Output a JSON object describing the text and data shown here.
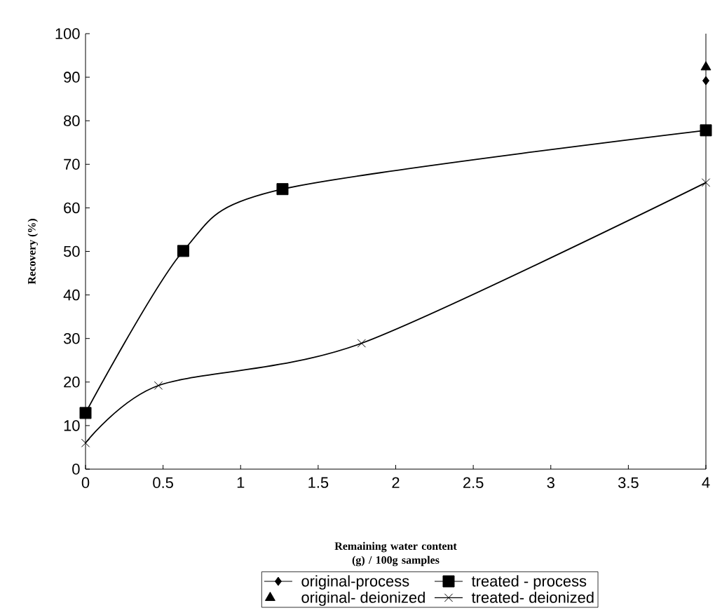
{
  "chart_data": {
    "type": "line",
    "xlabel": "Remaining water content (g) / 100g samples",
    "ylabel": "Recovery (%)",
    "xlim": [
      0,
      4
    ],
    "ylim": [
      0,
      100
    ],
    "xticks": [
      0,
      0.5,
      1,
      1.5,
      2,
      2.5,
      3,
      3.5,
      4
    ],
    "yticks": [
      0,
      10,
      20,
      30,
      40,
      50,
      60,
      70,
      80,
      90,
      100
    ],
    "grid": false,
    "legend": "bottom",
    "line_style": "solid",
    "series": [
      {
        "name": "original-process",
        "marker": "diamond",
        "color": "#000000",
        "x": [
          4
        ],
        "values": [
          89.2
        ]
      },
      {
        "name": "treated - process",
        "marker": "square",
        "color": "#000000",
        "x": [
          0,
          0.63,
          1.27,
          4
        ],
        "values": [
          12.9,
          50.1,
          64.3,
          77.8
        ]
      },
      {
        "name": "original- deionized",
        "type": "scatter",
        "marker": "triangle",
        "color": "#000000",
        "x": [
          4
        ],
        "values": [
          92.3
        ]
      },
      {
        "name": "treated- deionized",
        "marker": "cross",
        "color": "#000000",
        "x": [
          0,
          0.47,
          1.78,
          4
        ],
        "values": [
          6.0,
          19.2,
          28.9,
          65.8
        ]
      }
    ],
    "ref_lines": [
      {
        "axis": "x",
        "value": 4
      }
    ]
  }
}
